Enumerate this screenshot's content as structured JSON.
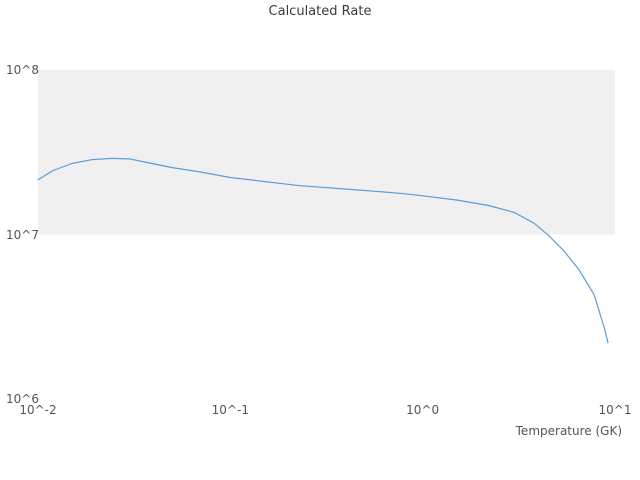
{
  "chart_data": {
    "type": "line",
    "title": "Calculated Rate",
    "xlabel": "Temperature (GK)",
    "ylabel": "",
    "xscale": "log",
    "yscale": "log",
    "xlim": [
      0.01,
      10
    ],
    "ylim": [
      1000000.0,
      100000000.0
    ],
    "grid": false,
    "legend": "none",
    "band": {
      "from": 10000000.0,
      "to": 100000000.0,
      "color": "#f0f0f0"
    },
    "line_color": "#5b9dd6",
    "x_ticks": [
      {
        "value": 0.01,
        "label": "10^-2"
      },
      {
        "value": 0.1,
        "label": "10^-1"
      },
      {
        "value": 1,
        "label": "10^0"
      },
      {
        "value": 10,
        "label": "10^1"
      }
    ],
    "y_ticks": [
      {
        "value": 1000000.0,
        "label": "10^6"
      },
      {
        "value": 10000000.0,
        "label": "10^7"
      },
      {
        "value": 100000000.0,
        "label": "10^8"
      }
    ],
    "series": [
      {
        "name": "calculated-rate",
        "x": [
          0.01,
          0.012,
          0.015,
          0.019,
          0.024,
          0.03,
          0.038,
          0.05,
          0.07,
          0.1,
          0.15,
          0.23,
          0.42,
          0.6,
          0.8,
          1.0,
          1.5,
          2.2,
          3.0,
          3.8,
          4.5,
          5.4,
          6.5,
          7.8,
          8.8,
          9.2
        ],
        "y": [
          21500000.0,
          24500000.0,
          27000000.0,
          28500000.0,
          29000000.0,
          28800000.0,
          27200000.0,
          25500000.0,
          24000000.0,
          22200000.0,
          21000000.0,
          19800000.0,
          18800000.0,
          18200000.0,
          17700000.0,
          17200000.0,
          16200000.0,
          15000000.0,
          13600000.0,
          11700000.0,
          9900000.0,
          8000000.0,
          6100000.0,
          4300000.0,
          2700000.0,
          2200000.0
        ]
      }
    ]
  }
}
